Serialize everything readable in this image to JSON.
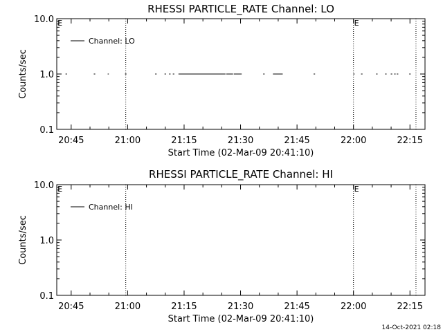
{
  "footer_timestamp": "14-Oct-2021 02:18",
  "chart_data": [
    {
      "type": "line",
      "title": "RHESSI PARTICLE_RATE Channel: LO",
      "xlabel": "Start Time (02-Mar-09 20:41:10)",
      "ylabel": "Counts/sec",
      "x_ticks": [
        "20:45",
        "21:00",
        "21:15",
        "21:30",
        "21:45",
        "22:00",
        "22:15"
      ],
      "x_tick_minutes": [
        45,
        60,
        75,
        90,
        105,
        120,
        135
      ],
      "xlim_minutes": [
        41.17,
        139.0
      ],
      "y_scale": "log",
      "ylim": [
        0.1,
        10.0
      ],
      "y_ticks": [
        "0.1",
        "1.0",
        "10.0"
      ],
      "y_tick_values": [
        0.1,
        1.0,
        10.0
      ],
      "legend": {
        "position": "top-left",
        "entries": [
          "Channel: LO"
        ]
      },
      "event_lines_minutes": [
        59.5,
        120.0,
        136.6
      ],
      "event_markers": [
        {
          "label": "E",
          "x_minutes": 41.2
        },
        {
          "label": "E",
          "x_minutes": 120.0
        }
      ],
      "series": [
        {
          "name": "Channel: LO",
          "value": 1.0,
          "segments_minutes": [
            [
              42.0,
              42.4
            ],
            [
              43.5,
              43.9
            ],
            [
              51.0,
              51.4
            ],
            [
              54.7,
              55.0
            ],
            [
              59.3,
              59.7
            ],
            [
              67.3,
              67.7
            ],
            [
              69.8,
              70.2
            ],
            [
              71.0,
              71.4
            ],
            [
              72.0,
              72.4
            ],
            [
              73.5,
              86.0
            ],
            [
              86.2,
              88.0
            ],
            [
              88.2,
              90.3
            ],
            [
              96.0,
              96.4
            ],
            [
              98.6,
              101.2
            ],
            [
              109.4,
              109.8
            ],
            [
              120.0,
              120.3
            ],
            [
              122.0,
              122.4
            ],
            [
              126.0,
              126.4
            ],
            [
              128.4,
              128.8
            ],
            [
              129.9,
              130.3
            ],
            [
              130.8,
              131.2
            ],
            [
              131.5,
              131.9
            ],
            [
              134.8,
              135.2
            ]
          ]
        }
      ]
    },
    {
      "type": "line",
      "title": "RHESSI PARTICLE_RATE Channel: HI",
      "xlabel": "Start Time (02-Mar-09 20:41:10)",
      "ylabel": "Counts/sec",
      "x_ticks": [
        "20:45",
        "21:00",
        "21:15",
        "21:30",
        "21:45",
        "22:00",
        "22:15"
      ],
      "x_tick_minutes": [
        45,
        60,
        75,
        90,
        105,
        120,
        135
      ],
      "xlim_minutes": [
        41.17,
        139.0
      ],
      "y_scale": "log",
      "ylim": [
        0.1,
        10.0
      ],
      "y_ticks": [
        "0.1",
        "1.0",
        "10.0"
      ],
      "y_tick_values": [
        0.1,
        1.0,
        10.0
      ],
      "legend": {
        "position": "top-left",
        "entries": [
          "Channel: HI"
        ]
      },
      "event_lines_minutes": [
        59.5,
        120.0,
        136.6
      ],
      "event_markers": [
        {
          "label": "E",
          "x_minutes": 41.2
        },
        {
          "label": "E",
          "x_minutes": 120.0
        }
      ],
      "series": [
        {
          "name": "Channel: HI",
          "value": 1.0,
          "segments_minutes": []
        }
      ]
    }
  ]
}
